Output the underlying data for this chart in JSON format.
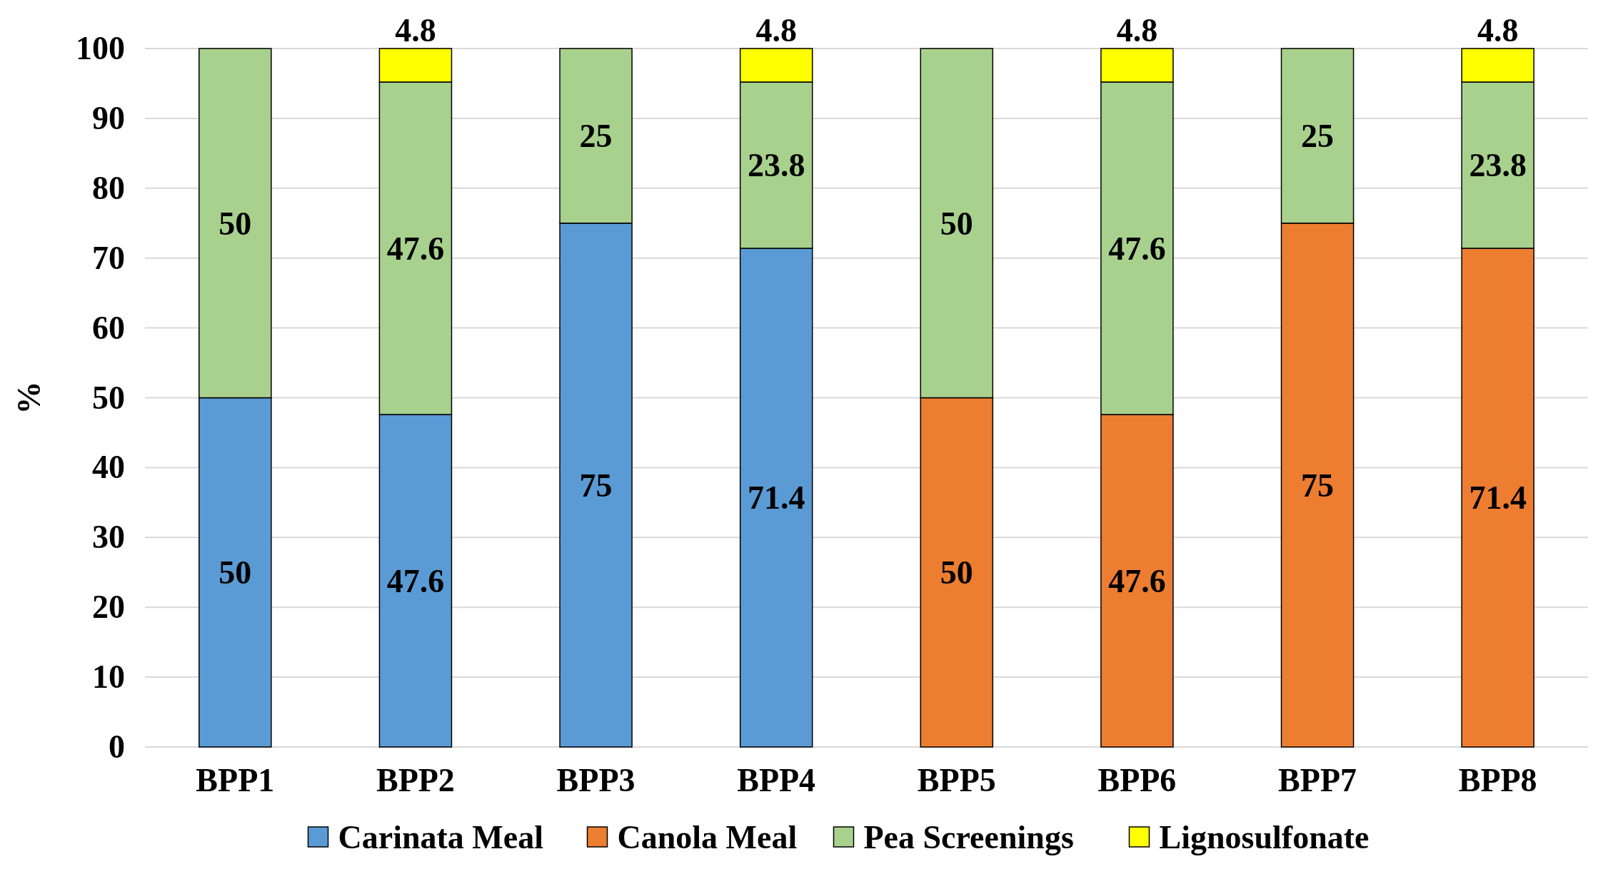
{
  "chart_data": {
    "type": "bar",
    "stacked": true,
    "ylabel": "%",
    "categories": [
      "BPP1",
      "BPP2",
      "BPP3",
      "BPP4",
      "BPP5",
      "BPP6",
      "BPP7",
      "BPP8"
    ],
    "series": [
      {
        "name": "Carinata Meal",
        "color": "#5b9bd5",
        "values": [
          50,
          47.6,
          75,
          71.4,
          null,
          null,
          null,
          null
        ]
      },
      {
        "name": "Canola Meal",
        "color": "#ed7d31",
        "values": [
          null,
          null,
          null,
          null,
          50,
          47.6,
          75,
          71.4
        ]
      },
      {
        "name": "Pea Screenings",
        "color": "#a9d18e",
        "values": [
          50,
          47.6,
          25,
          23.8,
          50,
          47.6,
          25,
          23.8
        ]
      },
      {
        "name": "Lignosulfonate",
        "color": "#ffff00",
        "values": [
          null,
          4.8,
          null,
          4.8,
          null,
          4.8,
          null,
          4.8
        ]
      }
    ],
    "ylim": [
      0,
      100
    ],
    "yticks": [
      0,
      10,
      20,
      30,
      40,
      50,
      60,
      70,
      80,
      90,
      100
    ],
    "grid": "y",
    "legend": "bottom",
    "data_labels": true
  }
}
